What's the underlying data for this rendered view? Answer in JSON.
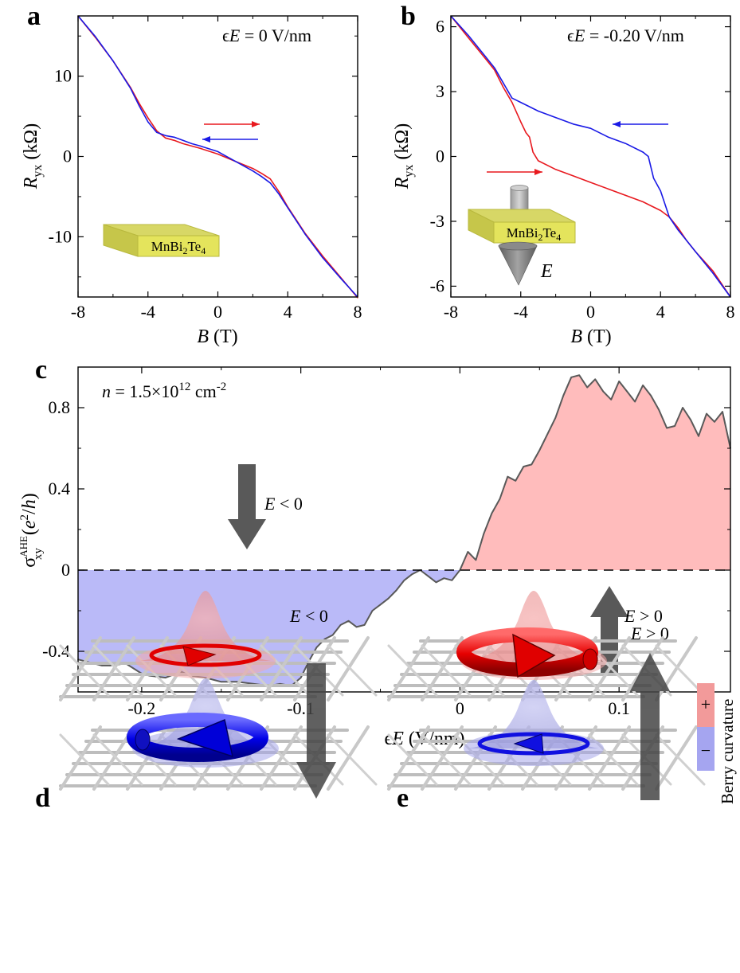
{
  "panel_labels": {
    "a": "a",
    "b": "b",
    "c": "c",
    "d": "d",
    "e": "e"
  },
  "colors": {
    "sweep_up": "#e8191f",
    "sweep_down": "#1a1ae6",
    "fill_positive": "#ffbcbc",
    "fill_negative": "#babaf8",
    "arrow_gray": "#595959",
    "block_yellow": "#e4e45c"
  },
  "panel_a": {
    "annotation": "ϵE = 0 V/nm",
    "annotation_parts": {
      "eps": "ϵ",
      "E": "E",
      "rest": " = 0 V/nm"
    },
    "ylabel": {
      "R": "R",
      "sub": "yx",
      "unit": " (kΩ)"
    },
    "xlabel": {
      "B": "B",
      "unit": " (T)"
    },
    "block_label": {
      "pre": "MnBi",
      "s1": "2",
      "mid": "Te",
      "s2": "4"
    }
  },
  "panel_b": {
    "annotation_parts": {
      "eps": "ϵ",
      "E": "E",
      "rest": " = -0.20 V/nm"
    },
    "ylabel": {
      "R": "R",
      "sub": "yx",
      "unit": " (kΩ)"
    },
    "xlabel": {
      "B": "B",
      "unit": " (T)"
    },
    "block_label": {
      "pre": "MnBi",
      "s1": "2",
      "mid": "Te",
      "s2": "4"
    },
    "field_label": "E"
  },
  "panel_c": {
    "density": {
      "n": "n",
      "eq": " = 1.5×10",
      "exp": "12",
      "unit": " cm",
      "uexp": "-2"
    },
    "ylabel": {
      "sigma": "σ",
      "sup": "AHE",
      "sub": "xy",
      "open": " (",
      "e": "e",
      "e_sup": "2",
      "slash": "/",
      "h": "h",
      "close": ")"
    },
    "xlabel": {
      "eps": "ϵ",
      "E": "E",
      "unit": " (V/nm)"
    },
    "arrow_neg": {
      "E": "E",
      "rest": " < 0"
    },
    "arrow_pos": {
      "E": "E",
      "rest": " > 0"
    }
  },
  "panel_d": {
    "E": "E",
    "rest": " < 0"
  },
  "panel_e": {
    "E": "E",
    "rest": " > 0"
  },
  "colorbar": {
    "title": "Berry curvature",
    "plus": "+",
    "minus": "−"
  },
  "chart_data": [
    {
      "id": "a",
      "type": "line",
      "title": "",
      "xlabel": "B (T)",
      "ylabel": "Ryx (kΩ)",
      "xlim": [
        -8,
        8
      ],
      "ylim": [
        -17.5,
        17.5
      ],
      "xticks": [
        -8,
        -4,
        0,
        4,
        8
      ],
      "yticks": [
        -10,
        0,
        10
      ],
      "yticks_minor": [
        -15,
        -5,
        5,
        15
      ],
      "series": [
        {
          "name": "",
          "color": "#e8191f",
          "x": [
            -8,
            -7,
            -6,
            -5,
            -4.5,
            -4,
            -3.5,
            -3,
            -2.5,
            -2,
            -1.5,
            -1,
            0,
            1,
            2,
            2.5,
            3,
            3.5,
            4,
            5,
            6,
            7,
            8
          ],
          "y": [
            17.5,
            14.8,
            11.9,
            8.6,
            6.6,
            4.8,
            3.2,
            2.3,
            2.0,
            1.6,
            1.3,
            1.0,
            0.3,
            -0.6,
            -1.5,
            -2.1,
            -2.8,
            -4.4,
            -6.3,
            -9.6,
            -12.4,
            -15.0,
            -17.6
          ]
        },
        {
          "name": "",
          "color": "#1a1ae6",
          "x": [
            -8,
            -7,
            -6,
            -5,
            -4.5,
            -4,
            -3.5,
            -3,
            -2.5,
            -2,
            -1.5,
            -1,
            0,
            1,
            2,
            2.5,
            3,
            3.5,
            4,
            5,
            6,
            7,
            8
          ],
          "y": [
            17.5,
            14.9,
            11.9,
            8.5,
            6.3,
            4.3,
            3.0,
            2.6,
            2.4,
            2.0,
            1.6,
            1.3,
            0.6,
            -0.6,
            -1.8,
            -2.5,
            -3.3,
            -4.7,
            -6.4,
            -9.7,
            -12.6,
            -15.1,
            -17.5
          ]
        }
      ],
      "sweep_arrows": [
        {
          "direction": "right",
          "color": "#e8191f"
        },
        {
          "direction": "left",
          "color": "#1a1ae6"
        }
      ]
    },
    {
      "id": "b",
      "type": "line",
      "title": "",
      "xlabel": "B (T)",
      "ylabel": "Ryx (kΩ)",
      "xlim": [
        -8,
        8
      ],
      "ylim": [
        -6.5,
        6.5
      ],
      "xticks": [
        -8,
        -4,
        0,
        4,
        8
      ],
      "yticks": [
        -6,
        -3,
        0,
        3,
        6
      ],
      "series": [
        {
          "name": "",
          "color": "#e8191f",
          "x": [
            -8,
            -7,
            -6,
            -5.5,
            -5,
            -4.5,
            -4,
            -3.7,
            -3.5,
            -3.3,
            -3,
            -2,
            -1,
            0,
            1,
            2,
            3,
            3.5,
            4,
            4.5,
            5,
            5.5,
            6,
            7,
            8
          ],
          "y": [
            6.5,
            5.5,
            4.5,
            4.0,
            3.2,
            2.5,
            1.6,
            1.1,
            0.9,
            0.2,
            -0.2,
            -0.6,
            -0.9,
            -1.2,
            -1.5,
            -1.8,
            -2.1,
            -2.3,
            -2.5,
            -2.8,
            -3.3,
            -3.9,
            -4.4,
            -5.3,
            -6.5
          ]
        },
        {
          "name": "",
          "color": "#1a1ae6",
          "x": [
            -8,
            -7,
            -6,
            -5.5,
            -5,
            -4.5,
            -4,
            -3.5,
            -3,
            -2,
            -1,
            0,
            1,
            2,
            3,
            3.3,
            3.6,
            4,
            4.5,
            5,
            5.5,
            6,
            7,
            8
          ],
          "y": [
            6.5,
            5.6,
            4.6,
            4.1,
            3.4,
            2.7,
            2.5,
            2.3,
            2.1,
            1.8,
            1.5,
            1.3,
            0.9,
            0.6,
            0.2,
            0.0,
            -1.0,
            -1.6,
            -2.8,
            -3.4,
            -3.9,
            -4.4,
            -5.4,
            -6.5
          ]
        }
      ],
      "sweep_arrows": [
        {
          "direction": "right",
          "color": "#e8191f"
        },
        {
          "direction": "left",
          "color": "#1a1ae6"
        }
      ]
    },
    {
      "id": "c",
      "type": "area",
      "title": "",
      "xlabel": "ϵE (V/nm)",
      "ylabel": "σxy AHE (e2/h)",
      "xlim": [
        -0.24,
        0.17
      ],
      "ylim": [
        -0.6,
        1.0
      ],
      "xticks": [
        -0.2,
        -0.1,
        0,
        0.1
      ],
      "yticks": [
        -0.4,
        0,
        0.4,
        0.8
      ],
      "reference_line": 0,
      "series": [
        {
          "name": "",
          "color": "#595959",
          "x": [
            -0.24,
            -0.225,
            -0.22,
            -0.21,
            -0.2,
            -0.195,
            -0.185,
            -0.175,
            -0.17,
            -0.16,
            -0.15,
            -0.14,
            -0.13,
            -0.12,
            -0.113,
            -0.106,
            -0.1,
            -0.095,
            -0.09,
            -0.085,
            -0.08,
            -0.075,
            -0.07,
            -0.065,
            -0.06,
            -0.055,
            -0.05,
            -0.045,
            -0.04,
            -0.035,
            -0.03,
            -0.025,
            -0.02,
            -0.015,
            -0.01,
            -0.005,
            0,
            0.005,
            0.01,
            0.015,
            0.02,
            0.025,
            0.03,
            0.035,
            0.04,
            0.045,
            0.05,
            0.055,
            0.06,
            0.065,
            0.07,
            0.075,
            0.08,
            0.085,
            0.09,
            0.095,
            0.1,
            0.105,
            0.11,
            0.115,
            0.12,
            0.125,
            0.13,
            0.135,
            0.14,
            0.145,
            0.15,
            0.155,
            0.16,
            0.165,
            0.17
          ],
          "y": [
            -0.44,
            -0.47,
            -0.47,
            -0.46,
            -0.51,
            -0.52,
            -0.53,
            -0.5,
            -0.52,
            -0.53,
            -0.55,
            -0.55,
            -0.56,
            -0.57,
            -0.56,
            -0.57,
            -0.53,
            -0.45,
            -0.38,
            -0.34,
            -0.32,
            -0.27,
            -0.25,
            -0.28,
            -0.27,
            -0.2,
            -0.17,
            -0.14,
            -0.1,
            -0.05,
            -0.02,
            0.0,
            -0.03,
            -0.06,
            -0.04,
            -0.05,
            0.0,
            0.09,
            0.05,
            0.18,
            0.28,
            0.35,
            0.46,
            0.44,
            0.51,
            0.52,
            0.59,
            0.67,
            0.75,
            0.86,
            0.95,
            0.96,
            0.9,
            0.94,
            0.88,
            0.84,
            0.93,
            0.88,
            0.83,
            0.91,
            0.86,
            0.79,
            0.7,
            0.71,
            0.8,
            0.74,
            0.66,
            0.77,
            0.73,
            0.78,
            0.6
          ]
        }
      ]
    }
  ]
}
